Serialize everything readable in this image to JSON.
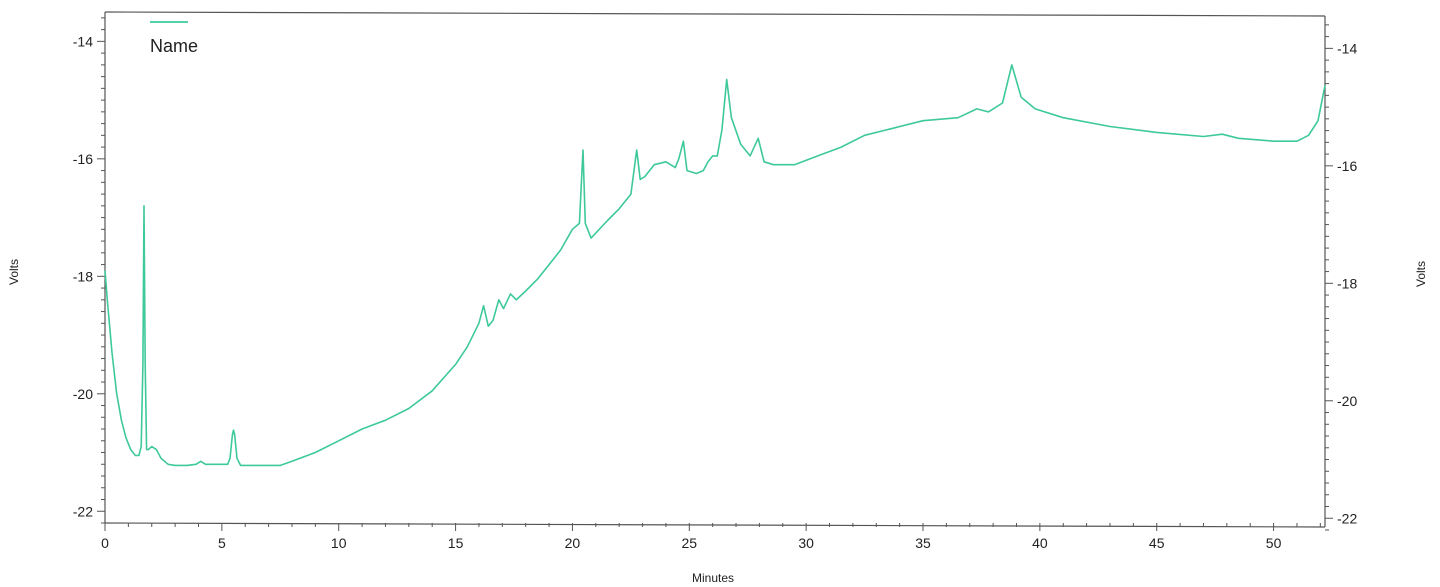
{
  "chart_data": {
    "type": "line",
    "title": "",
    "xlabel": "Minutes",
    "ylabel_left": "Volts",
    "ylabel_right": "Volts",
    "xlim": [
      0,
      52.2
    ],
    "ylim": [
      -22.2,
      -13.5
    ],
    "x_ticks": [
      0,
      5,
      10,
      15,
      20,
      25,
      30,
      35,
      40,
      45,
      50
    ],
    "x_tick_labels": [
      "0",
      "5",
      "10",
      "15",
      "20",
      "25",
      "30",
      "35",
      "40",
      "45",
      "50"
    ],
    "y_ticks": [
      -22,
      -20,
      -18,
      -16,
      -14
    ],
    "y_tick_labels": [
      "-22",
      "-20",
      "-18",
      "-16",
      "-14"
    ],
    "grid": false,
    "legend": {
      "position": "top-left"
    },
    "series": [
      {
        "name": "Name",
        "color": "#3ec99a",
        "points": [
          [
            0.0,
            -17.9
          ],
          [
            0.1,
            -18.4
          ],
          [
            0.3,
            -19.3
          ],
          [
            0.5,
            -20.0
          ],
          [
            0.7,
            -20.45
          ],
          [
            0.9,
            -20.75
          ],
          [
            1.1,
            -20.95
          ],
          [
            1.3,
            -21.05
          ],
          [
            1.45,
            -21.05
          ],
          [
            1.55,
            -20.9
          ],
          [
            1.62,
            -19.5
          ],
          [
            1.67,
            -16.8
          ],
          [
            1.72,
            -19.5
          ],
          [
            1.78,
            -20.95
          ],
          [
            1.85,
            -20.95
          ],
          [
            2.0,
            -20.9
          ],
          [
            2.2,
            -20.95
          ],
          [
            2.4,
            -21.1
          ],
          [
            2.7,
            -21.2
          ],
          [
            3.0,
            -21.22
          ],
          [
            3.5,
            -21.22
          ],
          [
            3.9,
            -21.2
          ],
          [
            4.1,
            -21.15
          ],
          [
            4.3,
            -21.2
          ],
          [
            4.6,
            -21.2
          ],
          [
            5.0,
            -21.2
          ],
          [
            5.25,
            -21.2
          ],
          [
            5.35,
            -21.1
          ],
          [
            5.45,
            -20.7
          ],
          [
            5.5,
            -20.62
          ],
          [
            5.55,
            -20.7
          ],
          [
            5.65,
            -21.1
          ],
          [
            5.8,
            -21.22
          ],
          [
            6.5,
            -21.22
          ],
          [
            7.5,
            -21.22
          ],
          [
            8.0,
            -21.15
          ],
          [
            9.0,
            -21.0
          ],
          [
            10.0,
            -20.8
          ],
          [
            11.0,
            -20.6
          ],
          [
            12.0,
            -20.45
          ],
          [
            13.0,
            -20.25
          ],
          [
            14.0,
            -19.95
          ],
          [
            15.0,
            -19.5
          ],
          [
            15.5,
            -19.2
          ],
          [
            16.0,
            -18.8
          ],
          [
            16.2,
            -18.5
          ],
          [
            16.4,
            -18.85
          ],
          [
            16.6,
            -18.75
          ],
          [
            16.85,
            -18.4
          ],
          [
            17.05,
            -18.55
          ],
          [
            17.35,
            -18.3
          ],
          [
            17.6,
            -18.4
          ],
          [
            18.0,
            -18.25
          ],
          [
            18.5,
            -18.05
          ],
          [
            19.0,
            -17.8
          ],
          [
            19.5,
            -17.55
          ],
          [
            20.0,
            -17.2
          ],
          [
            20.3,
            -17.1
          ],
          [
            20.45,
            -15.85
          ],
          [
            20.55,
            -17.1
          ],
          [
            20.8,
            -17.35
          ],
          [
            21.5,
            -17.05
          ],
          [
            22.0,
            -16.85
          ],
          [
            22.5,
            -16.6
          ],
          [
            22.75,
            -15.85
          ],
          [
            22.9,
            -16.35
          ],
          [
            23.1,
            -16.3
          ],
          [
            23.5,
            -16.1
          ],
          [
            24.0,
            -16.05
          ],
          [
            24.4,
            -16.15
          ],
          [
            24.55,
            -16.0
          ],
          [
            24.75,
            -15.7
          ],
          [
            24.9,
            -16.2
          ],
          [
            25.3,
            -16.25
          ],
          [
            25.6,
            -16.2
          ],
          [
            25.8,
            -16.05
          ],
          [
            26.0,
            -15.95
          ],
          [
            26.2,
            -15.95
          ],
          [
            26.4,
            -15.5
          ],
          [
            26.6,
            -14.65
          ],
          [
            26.8,
            -15.3
          ],
          [
            27.2,
            -15.75
          ],
          [
            27.6,
            -15.95
          ],
          [
            27.95,
            -15.65
          ],
          [
            28.2,
            -16.05
          ],
          [
            28.6,
            -16.1
          ],
          [
            29.5,
            -16.1
          ],
          [
            30.5,
            -15.95
          ],
          [
            31.5,
            -15.8
          ],
          [
            32.5,
            -15.6
          ],
          [
            33.5,
            -15.5
          ],
          [
            35.0,
            -15.35
          ],
          [
            36.5,
            -15.3
          ],
          [
            37.3,
            -15.15
          ],
          [
            37.8,
            -15.2
          ],
          [
            38.4,
            -15.05
          ],
          [
            38.8,
            -14.4
          ],
          [
            39.2,
            -14.95
          ],
          [
            39.8,
            -15.15
          ],
          [
            41.0,
            -15.3
          ],
          [
            43.0,
            -15.45
          ],
          [
            45.0,
            -15.55
          ],
          [
            47.0,
            -15.62
          ],
          [
            47.8,
            -15.58
          ],
          [
            48.5,
            -15.65
          ],
          [
            50.0,
            -15.7
          ],
          [
            51.0,
            -15.7
          ],
          [
            51.5,
            -15.6
          ],
          [
            51.9,
            -15.35
          ],
          [
            52.2,
            -14.75
          ]
        ]
      }
    ]
  }
}
